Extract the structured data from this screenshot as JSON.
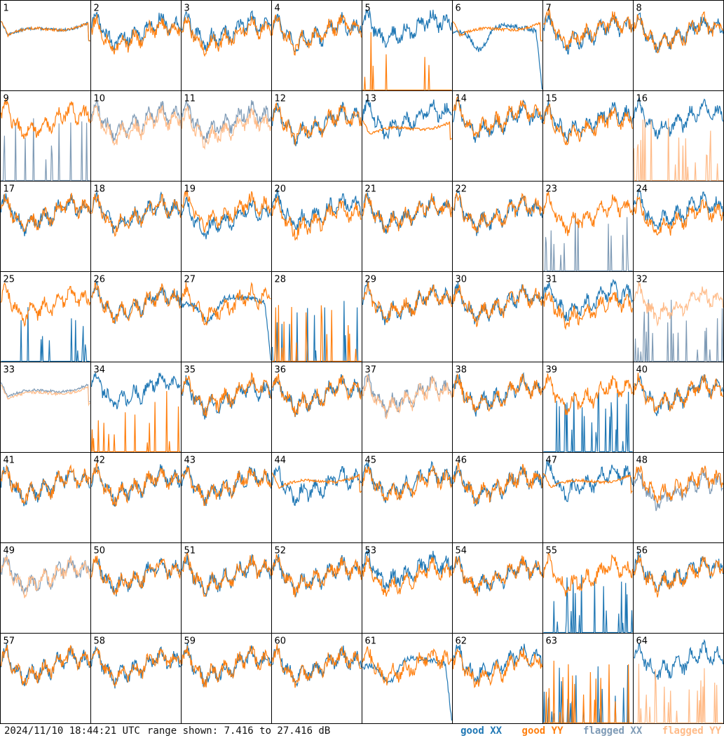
{
  "footer": {
    "timestamp": "2024/11/10 18:44:21 UTC",
    "range_label": "range shown: 7.416 to 27.416 dB"
  },
  "legend": {
    "good_xx": "good XX",
    "good_yy": "good YY",
    "flagged_xx": "flagged XX",
    "flagged_yy": "flagged YY"
  },
  "colors": {
    "good_xx": "#1f77b4",
    "good_yy": "#ff7f0e",
    "flagged_xx": "#7f9bb6",
    "flagged_yy": "#ffbb88"
  },
  "chart_data": {
    "type": "line",
    "grid": {
      "rows": 8,
      "cols": 8
    },
    "ylim": [
      7.416,
      27.416
    ],
    "yunit": "dB",
    "panels": [
      {
        "label": "1",
        "xx": "good",
        "yy": "good",
        "xx_shape": "smooth",
        "yy_shape": "smooth",
        "xx_offset": 0,
        "yy_offset": 0
      },
      {
        "label": "2",
        "xx": "good",
        "yy": "good",
        "xx_shape": "normal",
        "yy_shape": "normal",
        "xx_offset": 0.5,
        "yy_offset": -0.5
      },
      {
        "label": "3",
        "xx": "good",
        "yy": "good",
        "xx_shape": "normal",
        "yy_shape": "normal",
        "xx_offset": 0.5,
        "yy_offset": -0.5
      },
      {
        "label": "4",
        "xx": "good",
        "yy": "good",
        "xx_shape": "normal",
        "yy_shape": "normal",
        "xx_offset": 0,
        "yy_offset": 0
      },
      {
        "label": "5",
        "xx": "good",
        "yy": "good",
        "xx_shape": "normal",
        "yy_shape": "spiky",
        "xx_offset": 1,
        "yy_offset": 0
      },
      {
        "label": "6",
        "xx": "good",
        "yy": "good",
        "xx_shape": "dip",
        "yy_shape": "smooth",
        "xx_offset": 0,
        "yy_offset": 0
      },
      {
        "label": "7",
        "xx": "good",
        "yy": "good",
        "xx_shape": "normal",
        "yy_shape": "normal",
        "xx_offset": 0,
        "yy_offset": 0.5
      },
      {
        "label": "8",
        "xx": "good",
        "yy": "good",
        "xx_shape": "normal",
        "yy_shape": "normal",
        "xx_offset": 0,
        "yy_offset": 0
      },
      {
        "label": "9",
        "xx": "flagged",
        "yy": "good",
        "xx_shape": "spiky",
        "yy_shape": "normal",
        "xx_offset": 0,
        "yy_offset": 0.5
      },
      {
        "label": "10",
        "xx": "flagged",
        "yy": "flagged",
        "xx_shape": "normal",
        "yy_shape": "normal",
        "xx_offset": 0.5,
        "yy_offset": -0.5
      },
      {
        "label": "11",
        "xx": "flagged",
        "yy": "flagged",
        "xx_shape": "normal",
        "yy_shape": "normal",
        "xx_offset": 0.5,
        "yy_offset": -1
      },
      {
        "label": "12",
        "xx": "good",
        "yy": "good",
        "xx_shape": "normal",
        "yy_shape": "normal",
        "xx_offset": 0,
        "yy_offset": 0
      },
      {
        "label": "13",
        "xx": "good",
        "yy": "good",
        "xx_shape": "normal",
        "yy_shape": "smooth",
        "xx_offset": 1,
        "yy_offset": -2
      },
      {
        "label": "14",
        "xx": "good",
        "yy": "good",
        "xx_shape": "normal",
        "yy_shape": "normal",
        "xx_offset": 0.5,
        "yy_offset": 1
      },
      {
        "label": "15",
        "xx": "good",
        "yy": "good",
        "xx_shape": "normal",
        "yy_shape": "normal",
        "xx_offset": 0.5,
        "yy_offset": -0.5
      },
      {
        "label": "16",
        "xx": "good",
        "yy": "flagged",
        "xx_shape": "normal",
        "yy_shape": "spiky",
        "xx_offset": 1,
        "yy_offset": 0
      },
      {
        "label": "17",
        "xx": "good",
        "yy": "good",
        "xx_shape": "normal",
        "yy_shape": "normal",
        "xx_offset": 0,
        "yy_offset": 0
      },
      {
        "label": "18",
        "xx": "good",
        "yy": "good",
        "xx_shape": "normal",
        "yy_shape": "normal",
        "xx_offset": 0,
        "yy_offset": 0
      },
      {
        "label": "19",
        "xx": "good",
        "yy": "good",
        "xx_shape": "normal",
        "yy_shape": "normal",
        "xx_offset": -1,
        "yy_offset": 0.5
      },
      {
        "label": "20",
        "xx": "good",
        "yy": "good",
        "xx_shape": "normal",
        "yy_shape": "normal",
        "xx_offset": 0.5,
        "yy_offset": -1
      },
      {
        "label": "21",
        "xx": "good",
        "yy": "good",
        "xx_shape": "normal",
        "yy_shape": "normal",
        "xx_offset": 0,
        "yy_offset": 0
      },
      {
        "label": "22",
        "xx": "good",
        "yy": "good",
        "xx_shape": "normal",
        "yy_shape": "normal",
        "xx_offset": 0,
        "yy_offset": 0
      },
      {
        "label": "23",
        "xx": "flagged",
        "yy": "good",
        "xx_shape": "spiky",
        "yy_shape": "normal",
        "xx_offset": 0,
        "yy_offset": 0
      },
      {
        "label": "24",
        "xx": "good",
        "yy": "good",
        "xx_shape": "normal",
        "yy_shape": "normal",
        "xx_offset": 0.5,
        "yy_offset": -1
      },
      {
        "label": "25",
        "xx": "good",
        "yy": "good",
        "xx_shape": "spiky",
        "yy_shape": "normal",
        "xx_offset": 0,
        "yy_offset": 0
      },
      {
        "label": "26",
        "xx": "good",
        "yy": "good",
        "xx_shape": "normal",
        "yy_shape": "normal",
        "xx_offset": 0,
        "yy_offset": 0
      },
      {
        "label": "27",
        "xx": "good",
        "yy": "good",
        "xx_shape": "dip",
        "yy_shape": "normal",
        "xx_offset": 0,
        "yy_offset": 0
      },
      {
        "label": "28",
        "xx": "good",
        "yy": "good",
        "xx_shape": "spiky",
        "yy_shape": "spiky",
        "xx_offset": 0,
        "yy_offset": 0
      },
      {
        "label": "29",
        "xx": "good",
        "yy": "good",
        "xx_shape": "normal",
        "yy_shape": "normal",
        "xx_offset": 0,
        "yy_offset": 0
      },
      {
        "label": "30",
        "xx": "good",
        "yy": "good",
        "xx_shape": "normal",
        "yy_shape": "normal",
        "xx_offset": 0,
        "yy_offset": 0
      },
      {
        "label": "31",
        "xx": "good",
        "yy": "good",
        "xx_shape": "normal",
        "yy_shape": "normal",
        "xx_offset": 1,
        "yy_offset": -1
      },
      {
        "label": "32",
        "xx": "flagged",
        "yy": "flagged",
        "xx_shape": "spiky",
        "yy_shape": "normal",
        "xx_offset": 0,
        "yy_offset": 0
      },
      {
        "label": "33",
        "xx": "flagged",
        "yy": "flagged",
        "xx_shape": "smooth",
        "yy_shape": "smooth",
        "xx_offset": 0,
        "yy_offset": -0.5
      },
      {
        "label": "34",
        "xx": "good",
        "yy": "good",
        "xx_shape": "normal",
        "yy_shape": "spiky",
        "xx_offset": 1,
        "yy_offset": 0
      },
      {
        "label": "35",
        "xx": "good",
        "yy": "good",
        "xx_shape": "normal",
        "yy_shape": "normal",
        "xx_offset": -0.5,
        "yy_offset": 0
      },
      {
        "label": "36",
        "xx": "good",
        "yy": "good",
        "xx_shape": "normal",
        "yy_shape": "normal",
        "xx_offset": 0,
        "yy_offset": 0
      },
      {
        "label": "37",
        "xx": "flagged",
        "yy": "flagged",
        "xx_shape": "normal",
        "yy_shape": "normal",
        "xx_offset": 0,
        "yy_offset": -0.5
      },
      {
        "label": "38",
        "xx": "good",
        "yy": "good",
        "xx_shape": "normal",
        "yy_shape": "normal",
        "xx_offset": 0,
        "yy_offset": 0
      },
      {
        "label": "39",
        "xx": "good",
        "yy": "good",
        "xx_shape": "spiky",
        "yy_shape": "normal",
        "xx_offset": 0,
        "yy_offset": 0
      },
      {
        "label": "40",
        "xx": "good",
        "yy": "good",
        "xx_shape": "normal",
        "yy_shape": "normal",
        "xx_offset": 0,
        "yy_offset": 0
      },
      {
        "label": "41",
        "xx": "good",
        "yy": "good",
        "xx_shape": "normal",
        "yy_shape": "normal",
        "xx_offset": 0,
        "yy_offset": 0
      },
      {
        "label": "42",
        "xx": "good",
        "yy": "good",
        "xx_shape": "normal",
        "yy_shape": "normal",
        "xx_offset": 0,
        "yy_offset": 0
      },
      {
        "label": "43",
        "xx": "good",
        "yy": "good",
        "xx_shape": "normal",
        "yy_shape": "normal",
        "xx_offset": 0,
        "yy_offset": 0
      },
      {
        "label": "44",
        "xx": "good",
        "yy": "good",
        "xx_shape": "normal",
        "yy_shape": "smooth",
        "xx_offset": 0,
        "yy_offset": 0
      },
      {
        "label": "45",
        "xx": "good",
        "yy": "good",
        "xx_shape": "normal",
        "yy_shape": "normal",
        "xx_offset": 0.5,
        "yy_offset": 0
      },
      {
        "label": "46",
        "xx": "good",
        "yy": "good",
        "xx_shape": "normal",
        "yy_shape": "normal",
        "xx_offset": 0,
        "yy_offset": 0
      },
      {
        "label": "47",
        "xx": "good",
        "yy": "good",
        "xx_shape": "normal",
        "yy_shape": "smooth",
        "xx_offset": 1,
        "yy_offset": 0
      },
      {
        "label": "48",
        "xx": "flagged",
        "yy": "good",
        "xx_shape": "normal",
        "yy_shape": "normal",
        "xx_offset": -1,
        "yy_offset": 0
      },
      {
        "label": "49",
        "xx": "flagged",
        "yy": "flagged",
        "xx_shape": "normal",
        "yy_shape": "normal",
        "xx_offset": 0,
        "yy_offset": 0
      },
      {
        "label": "50",
        "xx": "good",
        "yy": "good",
        "xx_shape": "normal",
        "yy_shape": "normal",
        "xx_offset": 0,
        "yy_offset": 0
      },
      {
        "label": "51",
        "xx": "good",
        "yy": "good",
        "xx_shape": "normal",
        "yy_shape": "normal",
        "xx_offset": 0,
        "yy_offset": 0
      },
      {
        "label": "52",
        "xx": "good",
        "yy": "good",
        "xx_shape": "normal",
        "yy_shape": "normal",
        "xx_offset": 0,
        "yy_offset": 0
      },
      {
        "label": "53",
        "xx": "good",
        "yy": "good",
        "xx_shape": "normal",
        "yy_shape": "normal",
        "xx_offset": 1,
        "yy_offset": -0.5
      },
      {
        "label": "54",
        "xx": "good",
        "yy": "good",
        "xx_shape": "normal",
        "yy_shape": "normal",
        "xx_offset": 0,
        "yy_offset": 0
      },
      {
        "label": "55",
        "xx": "good",
        "yy": "good",
        "xx_shape": "spiky",
        "yy_shape": "normal",
        "xx_offset": 0,
        "yy_offset": 0
      },
      {
        "label": "56",
        "xx": "good",
        "yy": "good",
        "xx_shape": "normal",
        "yy_shape": "normal",
        "xx_offset": 0.5,
        "yy_offset": 0
      },
      {
        "label": "57",
        "xx": "good",
        "yy": "good",
        "xx_shape": "normal",
        "yy_shape": "normal",
        "xx_offset": 0,
        "yy_offset": 0
      },
      {
        "label": "58",
        "xx": "good",
        "yy": "good",
        "xx_shape": "normal",
        "yy_shape": "normal",
        "xx_offset": 0,
        "yy_offset": 0
      },
      {
        "label": "59",
        "xx": "good",
        "yy": "good",
        "xx_shape": "normal",
        "yy_shape": "normal",
        "xx_offset": 0,
        "yy_offset": 0
      },
      {
        "label": "60",
        "xx": "good",
        "yy": "good",
        "xx_shape": "normal",
        "yy_shape": "normal",
        "xx_offset": 0,
        "yy_offset": 0
      },
      {
        "label": "61",
        "xx": "good",
        "yy": "good",
        "xx_shape": "dip",
        "yy_shape": "normal",
        "xx_offset": 0,
        "yy_offset": 0
      },
      {
        "label": "62",
        "xx": "good",
        "yy": "good",
        "xx_shape": "normal",
        "yy_shape": "normal",
        "xx_offset": 0.5,
        "yy_offset": -0.5
      },
      {
        "label": "63",
        "xx": "good",
        "yy": "good",
        "xx_shape": "spiky",
        "yy_shape": "spiky",
        "xx_offset": 0,
        "yy_offset": 0
      },
      {
        "label": "64",
        "xx": "good",
        "yy": "flagged",
        "xx_shape": "normal",
        "yy_shape": "spiky",
        "xx_offset": 1,
        "yy_offset": 0
      }
    ]
  }
}
